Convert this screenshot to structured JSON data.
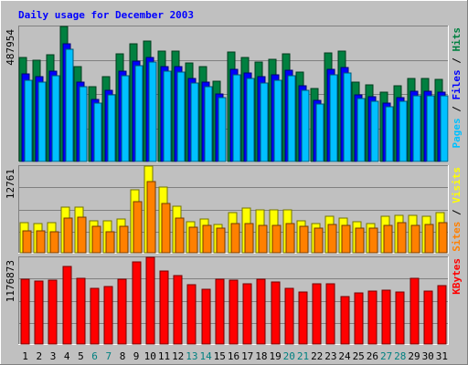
{
  "chart_data": {
    "title": "Daily usage for December 2003",
    "days": [
      "1",
      "2",
      "3",
      "4",
      "5",
      "6",
      "7",
      "8",
      "9",
      "10",
      "11",
      "12",
      "13",
      "14",
      "15",
      "16",
      "17",
      "18",
      "19",
      "20",
      "21",
      "22",
      "23",
      "24",
      "25",
      "26",
      "27",
      "28",
      "29",
      "30",
      "31"
    ],
    "weekend_days": [
      "6",
      "7",
      "13",
      "14",
      "20",
      "21",
      "27",
      "28"
    ],
    "panels": [
      {
        "type": "bar",
        "max_label": "487954",
        "max": 487954,
        "series": [
          {
            "name": "Hits",
            "color": "#008040",
            "values": [
              377000,
              367000,
              385000,
              487954,
              342000,
              269000,
              307000,
              389000,
              426000,
              435000,
              399000,
              399000,
              356000,
              342000,
              289000,
              394000,
              375000,
              360000,
              370000,
              389000,
              322000,
              264000,
              393000,
              398000,
              286000,
              278000,
              251000,
              274000,
              301000,
              301000,
              298000
            ]
          },
          {
            "name": "Files",
            "color": "#0000ff",
            "values": [
              316000,
              305000,
              326000,
              426000,
              286000,
              224000,
              256000,
              327000,
              364000,
              377000,
              344000,
              342000,
              301000,
              288000,
              243000,
              334000,
              320000,
              305000,
              312000,
              329000,
              274000,
              222000,
              332000,
              338000,
              241000,
              233000,
              211000,
              231000,
              253000,
              253000,
              251000
            ]
          },
          {
            "name": "Pages",
            "color": "#00c0ff",
            "values": [
              295000,
              288000,
              310000,
              407000,
              270000,
              210000,
              240000,
              311000,
              346000,
              358000,
              325000,
              324000,
              283000,
              270000,
              230000,
              314000,
              300000,
              285000,
              293000,
              311000,
              258000,
              208000,
              313000,
              320000,
              227000,
              219000,
              198000,
              218000,
              238000,
              238000,
              236000
            ]
          }
        ]
      },
      {
        "type": "bar",
        "max_label": "12761",
        "max": 12761,
        "series": [
          {
            "name": "Visits",
            "color": "#ffff00",
            "values": [
              4470,
              4330,
              4460,
              6760,
              6730,
              4690,
              4760,
              5020,
              9240,
              12761,
              9680,
              6790,
              4560,
              4960,
              4200,
              5910,
              6520,
              6250,
              6320,
              6320,
              4730,
              4330,
              5420,
              5060,
              4510,
              4350,
              5390,
              5500,
              5530,
              5360,
              5910
            ]
          },
          {
            "name": "Sites",
            "color": "#ff8000",
            "values": [
              3190,
              3170,
              3130,
              5130,
              5270,
              3870,
              3080,
              3880,
              7580,
              10450,
              7280,
              5080,
              3780,
              4020,
              3640,
              4330,
              4270,
              4020,
              4060,
              4360,
              3870,
              3640,
              4160,
              3970,
              3660,
              3650,
              4060,
              4400,
              4000,
              4120,
              4410
            ]
          }
        ]
      },
      {
        "type": "bar",
        "max_label": "1176873",
        "max": 1176873,
        "series": [
          {
            "name": "KBytes",
            "color": "#ff0000",
            "values": [
              885000,
              852000,
              869000,
              1059000,
              887000,
              752000,
              783000,
              885000,
              1119000,
              1176873,
              991000,
              934000,
              806000,
              742000,
              878000,
              868000,
              821000,
              879000,
              844000,
              751000,
              710000,
              822000,
              822000,
              647000,
              689000,
              722000,
              735000,
              708000,
              889000,
              715000,
              798000
            ]
          }
        ]
      }
    ]
  }
}
